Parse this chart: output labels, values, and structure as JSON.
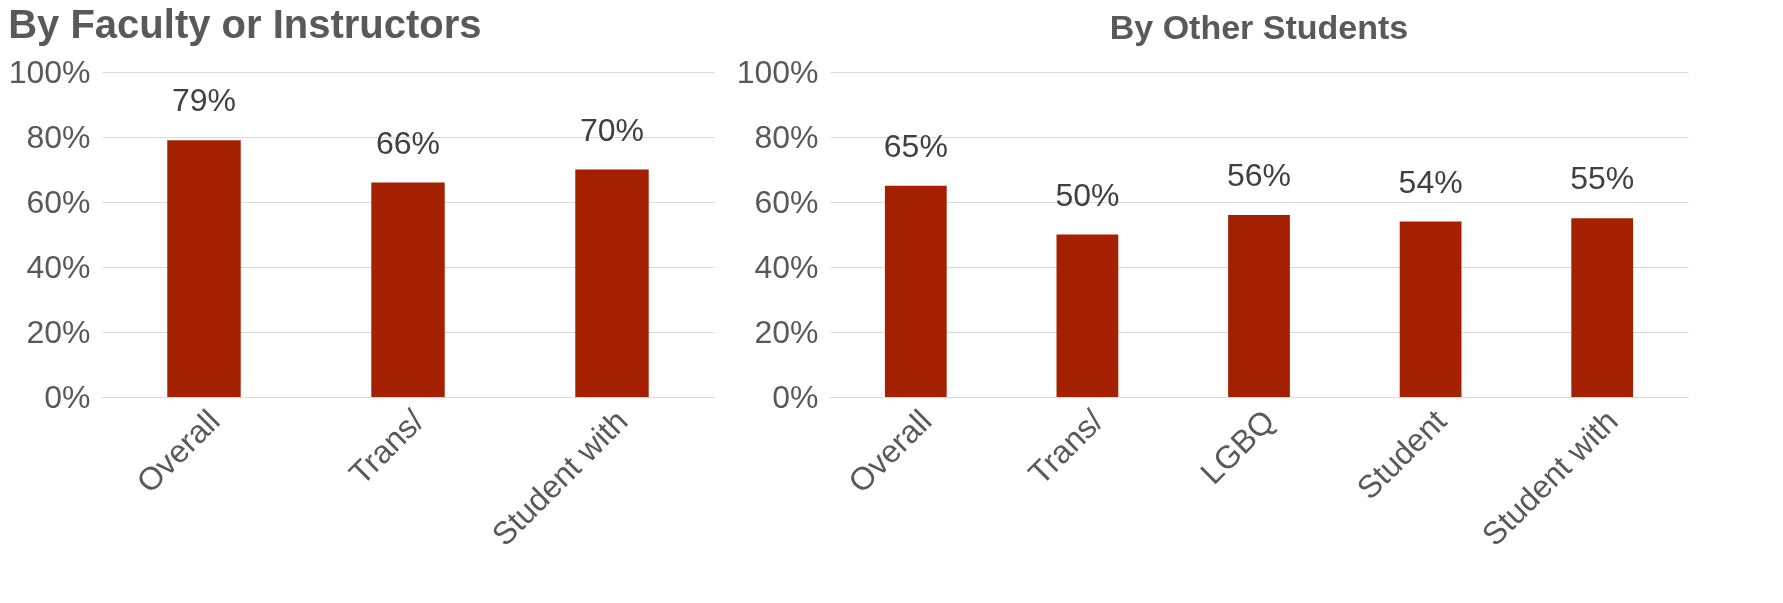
{
  "chart_data": [
    {
      "type": "bar",
      "title": "By Faculty or Instructors",
      "categories": [
        "Overall",
        "Trans/",
        "Student with"
      ],
      "series": [
        {
          "color": "#a52000",
          "values": [
            79,
            66,
            70
          ],
          "value_labels": [
            "79%",
            "66%",
            "70%"
          ]
        }
      ],
      "ylim": [
        0,
        100
      ],
      "yticks": [
        {
          "value": 0,
          "label": "0%"
        },
        {
          "value": 20,
          "label": "20%"
        },
        {
          "value": 40,
          "label": "40%"
        },
        {
          "value": 60,
          "label": "60%"
        },
        {
          "value": 80,
          "label": "80%"
        },
        {
          "value": 100,
          "label": "100%"
        }
      ],
      "grid": "y"
    },
    {
      "type": "bar",
      "title": "By Other Students",
      "categories": [
        "Overall",
        "Trans/",
        "LGBQ",
        "Student",
        "Student with"
      ],
      "series": [
        {
          "color": "#a52000",
          "values": [
            65,
            50,
            56,
            54,
            55
          ],
          "value_labels": [
            "65%",
            "50%",
            "56%",
            "54%",
            "55%"
          ]
        }
      ],
      "ylim": [
        0,
        100
      ],
      "yticks": [
        {
          "value": 0,
          "label": "0%"
        },
        {
          "value": 20,
          "label": "20%"
        },
        {
          "value": 40,
          "label": "40%"
        },
        {
          "value": 60,
          "label": "60%"
        },
        {
          "value": 80,
          "label": "80%"
        },
        {
          "value": 100,
          "label": "100%"
        }
      ],
      "grid": "y"
    }
  ]
}
